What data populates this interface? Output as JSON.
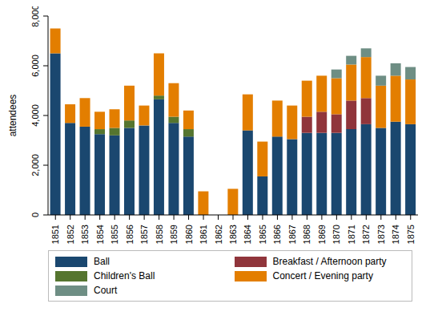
{
  "chart_data": {
    "type": "bar",
    "y_label": "attendees",
    "categories": [
      "1851",
      "1852",
      "1853",
      "1854",
      "1855",
      "1856",
      "1857",
      "1858",
      "1859",
      "1860",
      "1861",
      "1862",
      "1863",
      "1864",
      "1865",
      "1866",
      "1867",
      "1868",
      "1869",
      "1870",
      "1871",
      "1872",
      "1873",
      "1874",
      "1875"
    ],
    "series": [
      {
        "name": "Ball",
        "color": "#1a476f",
        "values": [
          6500,
          3700,
          3550,
          3250,
          3200,
          3500,
          3600,
          4650,
          3700,
          3150,
          0,
          0,
          0,
          3400,
          1550,
          3150,
          3050,
          3300,
          3300,
          3300,
          3450,
          3650,
          3500,
          3750,
          3650
        ]
      },
      {
        "name": "Breakfast / Afternoon party",
        "color": "#90353b",
        "values": [
          0,
          0,
          0,
          0,
          0,
          0,
          0,
          0,
          0,
          0,
          0,
          0,
          0,
          0,
          0,
          0,
          0,
          650,
          850,
          750,
          1150,
          1050,
          0,
          0,
          0
        ]
      },
      {
        "name": "Children's Ball",
        "color": "#55752f",
        "values": [
          0,
          0,
          0,
          200,
          300,
          300,
          0,
          150,
          250,
          300,
          0,
          0,
          0,
          0,
          0,
          0,
          0,
          0,
          0,
          0,
          0,
          0,
          0,
          0,
          0
        ]
      },
      {
        "name": "Concert / Evening party",
        "color": "#e37e00",
        "values": [
          1000,
          750,
          1150,
          700,
          750,
          1400,
          800,
          1700,
          1350,
          750,
          950,
          0,
          1050,
          1450,
          1400,
          1450,
          1350,
          1450,
          1450,
          1450,
          1450,
          1650,
          1700,
          1850,
          1800
        ]
      },
      {
        "name": "Court",
        "color": "#6e8e84",
        "values": [
          0,
          0,
          0,
          0,
          0,
          0,
          0,
          0,
          0,
          0,
          0,
          0,
          0,
          0,
          0,
          0,
          0,
          0,
          0,
          350,
          350,
          350,
          400,
          500,
          500
        ]
      }
    ],
    "ylim": [
      0,
      8000
    ],
    "yticks": [
      0,
      {
        "value": 2000,
        "label": "2,000"
      },
      {
        "value": 4000,
        "label": "4,000"
      },
      {
        "value": 6000,
        "label": "6,000"
      },
      {
        "value": 8000,
        "label": "8,000"
      }
    ],
    "stacked": true,
    "grid": false,
    "legend": "bottom"
  }
}
